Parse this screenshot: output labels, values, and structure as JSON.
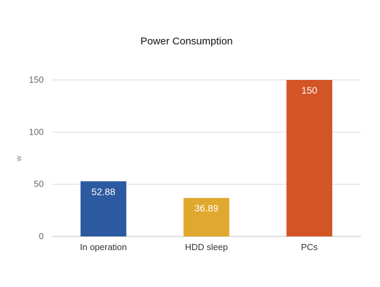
{
  "chart_data": {
    "type": "bar",
    "title": "Power Consumption",
    "xlabel": "",
    "ylabel": "w",
    "categories": [
      "In operation",
      "HDD sleep",
      "PCs"
    ],
    "values": [
      52.88,
      36.89,
      150
    ],
    "data_labels": [
      "52.88",
      "36.89",
      "150"
    ],
    "colors": [
      "#2c5aa0",
      "#e0a82e",
      "#d35424"
    ],
    "ylim": [
      0,
      150
    ],
    "yticks": [
      0,
      50,
      100,
      150
    ],
    "ytick_labels": [
      "0",
      "50",
      "100",
      "150"
    ],
    "grid": true,
    "legend": "none"
  }
}
